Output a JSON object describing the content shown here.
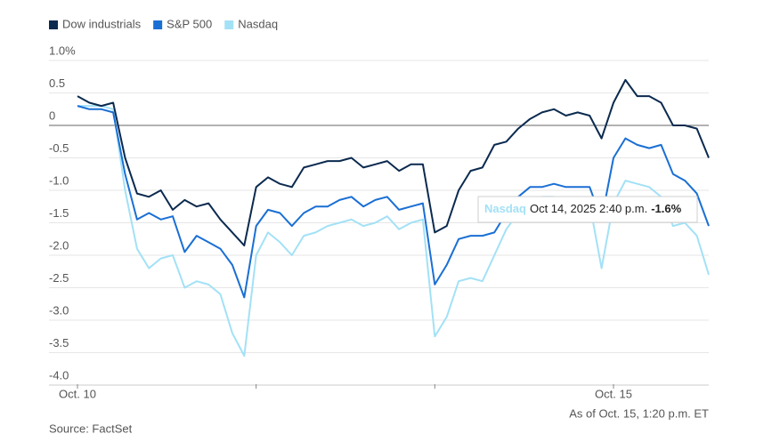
{
  "chart_data": {
    "type": "line",
    "categories": [
      "Oct. 10",
      null,
      null,
      null,
      null,
      null,
      null,
      null,
      null,
      null,
      null,
      null,
      null,
      null,
      null,
      null,
      null,
      null,
      null,
      null,
      null,
      null,
      null,
      null,
      null,
      null,
      null,
      null,
      null,
      null,
      null,
      null,
      null,
      null,
      null,
      null,
      null,
      null,
      null,
      null,
      null,
      null,
      null,
      null,
      null,
      "Oct. 15",
      null,
      null,
      null,
      null,
      null,
      null,
      null,
      null
    ],
    "series": [
      {
        "name": "Dow industrials",
        "color": "#0b2a4f",
        "values": [
          0.45,
          0.35,
          0.3,
          0.35,
          -0.5,
          -1.05,
          -1.1,
          -1.0,
          -1.3,
          -1.15,
          -1.25,
          -1.2,
          -1.45,
          -1.65,
          -1.85,
          -0.95,
          -0.8,
          -0.9,
          -0.95,
          -0.65,
          -0.6,
          -0.55,
          -0.55,
          -0.5,
          -0.65,
          -0.6,
          -0.55,
          -0.7,
          -0.6,
          -0.6,
          -1.65,
          -1.55,
          -1.0,
          -0.7,
          -0.65,
          -0.3,
          -0.25,
          -0.05,
          0.1,
          0.2,
          0.25,
          0.15,
          0.2,
          0.15,
          -0.2,
          0.35,
          0.7,
          0.45,
          0.45,
          0.35,
          0.0,
          0.0,
          -0.05,
          -0.5
        ]
      },
      {
        "name": "S&P 500",
        "color": "#1a6fd4",
        "values": [
          0.3,
          0.25,
          0.25,
          0.2,
          -0.75,
          -1.45,
          -1.35,
          -1.45,
          -1.4,
          -1.95,
          -1.7,
          -1.8,
          -1.9,
          -2.15,
          -2.65,
          -1.55,
          -1.3,
          -1.35,
          -1.55,
          -1.35,
          -1.25,
          -1.25,
          -1.15,
          -1.1,
          -1.25,
          -1.15,
          -1.1,
          -1.3,
          -1.25,
          -1.2,
          -2.45,
          -2.15,
          -1.75,
          -1.7,
          -1.7,
          -1.65,
          -1.35,
          -1.1,
          -0.95,
          -0.95,
          -0.9,
          -0.95,
          -0.95,
          -0.95,
          -1.45,
          -0.5,
          -0.2,
          -0.3,
          -0.35,
          -0.3,
          -0.75,
          -0.85,
          -1.05,
          -1.55
        ]
      },
      {
        "name": "Nasdaq",
        "color": "#a3e1f6",
        "values": [
          0.3,
          0.3,
          0.3,
          0.25,
          -1.0,
          -1.9,
          -2.2,
          -2.05,
          -2.0,
          -2.5,
          -2.4,
          -2.45,
          -2.6,
          -3.2,
          -3.55,
          -2.0,
          -1.65,
          -1.8,
          -2.0,
          -1.7,
          -1.65,
          -1.55,
          -1.5,
          -1.45,
          -1.55,
          -1.5,
          -1.4,
          -1.6,
          -1.5,
          -1.45,
          -3.25,
          -2.95,
          -2.4,
          -2.35,
          -2.4,
          -2.0,
          -1.6,
          -1.35,
          -1.15,
          -1.1,
          -1.1,
          -1.15,
          -1.15,
          -1.2,
          -2.2,
          -1.2,
          -0.85,
          -0.9,
          -0.95,
          -1.1,
          -1.55,
          -1.5,
          -1.7,
          -2.3
        ]
      }
    ],
    "ylim": [
      -4,
      1
    ],
    "yticks": [
      {
        "value": 1,
        "label": "1.0%"
      },
      0.5,
      0,
      -0.5,
      {
        "value": -1,
        "label": "-1.0"
      },
      -1.5,
      {
        "value": -2,
        "label": "-2.0"
      },
      -2.5,
      {
        "value": -3,
        "label": "-3.0"
      },
      -3.5,
      {
        "value": -4,
        "label": "-4.0"
      }
    ],
    "grid": true,
    "legend": "top-left",
    "tooltip": {
      "series": "Nasdaq",
      "label": "Oct 14, 2025 2:40 p.m.",
      "value": "-1.6%"
    },
    "note": "As of Oct. 15, 1:20 p.m. ET",
    "source": "Source: FactSet"
  }
}
